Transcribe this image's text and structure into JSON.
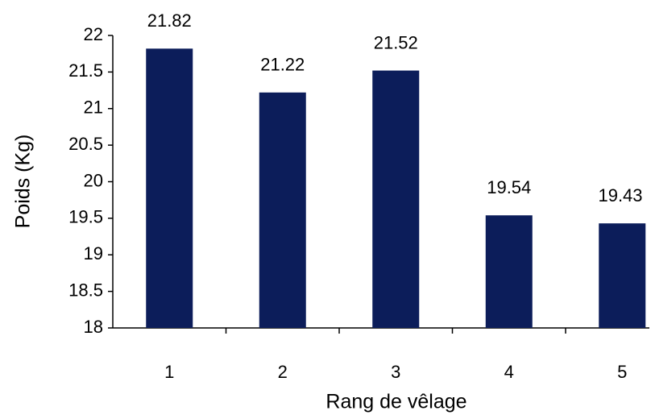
{
  "chart_data": {
    "type": "bar",
    "xlabel": "Rang de vêlage",
    "ylabel": "Poids (Kg)",
    "categories": [
      "1",
      "2",
      "3",
      "4",
      "5"
    ],
    "values": [
      21.82,
      21.22,
      21.52,
      19.54,
      19.43
    ],
    "color": "#0c1d5a",
    "ylim": [
      18,
      22
    ],
    "yticks": [
      18,
      18.5,
      19,
      19.5,
      20,
      20.5,
      21,
      21.5,
      22
    ]
  }
}
